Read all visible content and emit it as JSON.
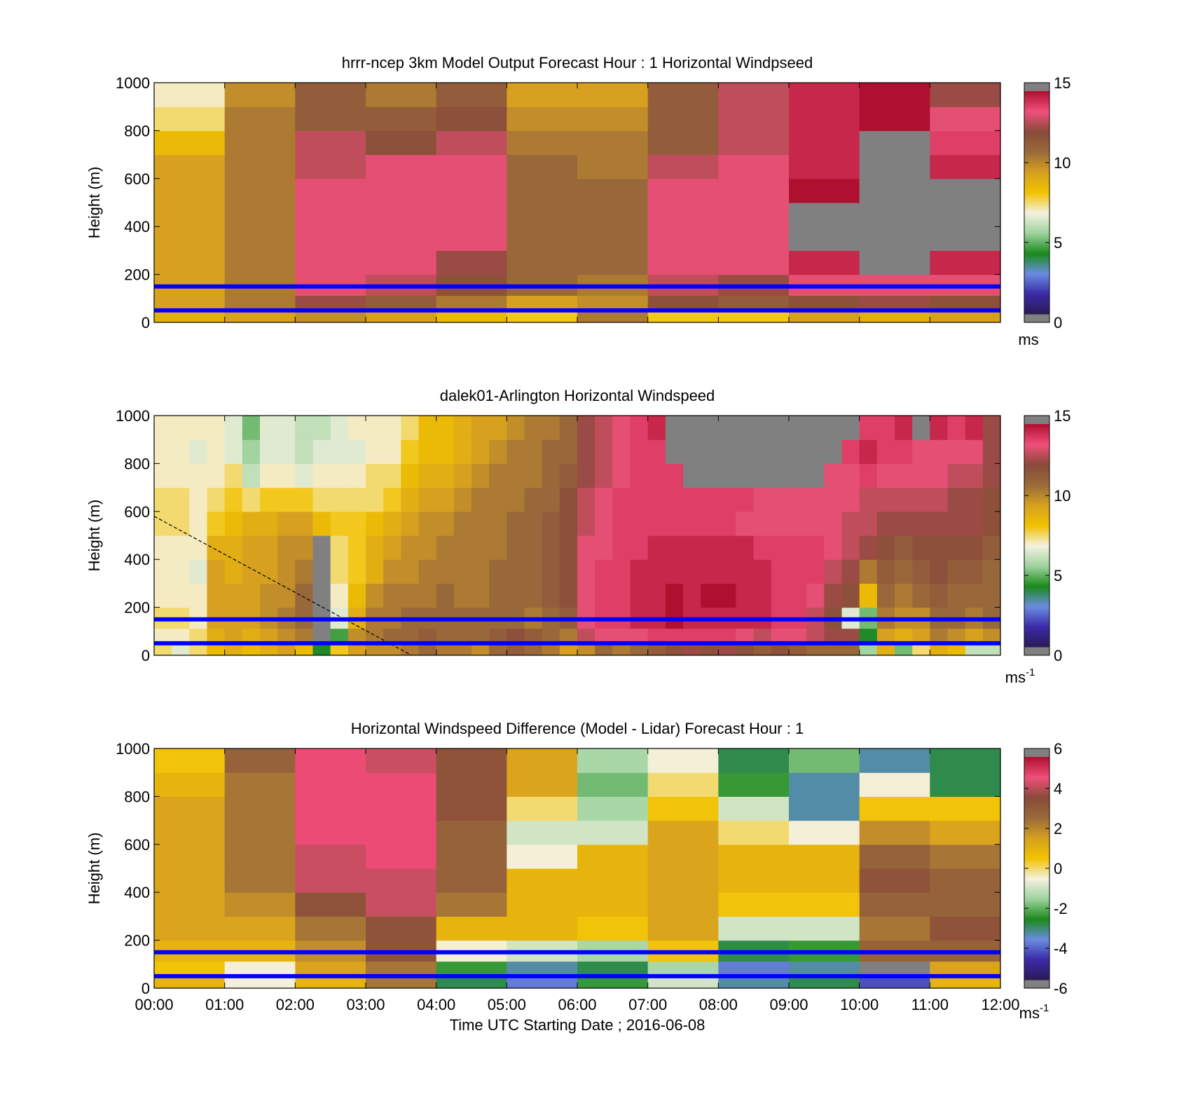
{
  "figure": {
    "xlabel": "Time UTC  Starting Date ; 2016-06-08"
  },
  "colors": {
    "scale_stops": [
      "#2a1a55",
      "#3b2aa8",
      "#6a8de0",
      "#1a8a1a",
      "#9fd39f",
      "#f4f1e0",
      "#f2c200",
      "#d6a020",
      "#9a6a3a",
      "#8a4a3a",
      "#f0507a",
      "#b01030"
    ],
    "missing": "#808080",
    "empty": "#ffffff",
    "overlay_line": "#0000ff"
  },
  "chart_data": [
    {
      "type": "heatmap",
      "title": "hrrr-ncep 3km Model Output   Forecast Hour : 1 Horizontal Windpseed",
      "ylabel": "Height (m)",
      "xlabel": "",
      "ylim": [
        0,
        1000
      ],
      "yticks": [
        "0",
        "200",
        "400",
        "600",
        "800",
        "1000"
      ],
      "xticks": [
        "00:00",
        "01:00",
        "02:00",
        "03:00",
        "04:00",
        "05:00",
        "06:00",
        "07:00",
        "08:00",
        "09:00",
        "10:00",
        "11:00",
        "12:00"
      ],
      "show_xtick_labels": false,
      "x_hours": [
        0,
        12
      ],
      "heights": [
        25,
        75,
        150,
        250,
        350,
        450,
        550,
        650,
        750,
        850,
        950
      ],
      "time_bins": 12,
      "values": [
        [
          9.0,
          9.5,
          10.0,
          9.5,
          8.5,
          8.0,
          10.5,
          8.0,
          8.0,
          9.5,
          9.0,
          9.5
        ],
        [
          9.5,
          10.5,
          12.5,
          11.5,
          10.5,
          9.5,
          10.0,
          12.0,
          11.5,
          12.0,
          12.5,
          12.0
        ],
        [
          9.5,
          10.5,
          13.5,
          13.0,
          12.0,
          11.0,
          10.5,
          13.0,
          12.5,
          13.5,
          13.5,
          13.5
        ],
        [
          9.5,
          10.5,
          13.5,
          13.5,
          12.5,
          11.0,
          11.0,
          13.5,
          13.5,
          14.5,
          null,
          14.5
        ],
        [
          9.5,
          10.5,
          13.5,
          13.5,
          13.5,
          11.0,
          11.0,
          13.5,
          13.5,
          null,
          null,
          null
        ],
        [
          9.5,
          10.5,
          13.5,
          13.5,
          13.5,
          11.0,
          11.0,
          13.5,
          13.5,
          null,
          null,
          null
        ],
        [
          9.5,
          10.5,
          13.5,
          13.5,
          13.5,
          11.0,
          11.0,
          13.5,
          13.5,
          15.0,
          null,
          null
        ],
        [
          9.5,
          10.5,
          13.0,
          13.5,
          13.5,
          11.0,
          10.5,
          13.0,
          13.5,
          14.5,
          null,
          14.5
        ],
        [
          8.5,
          10.5,
          13.0,
          12.0,
          13.0,
          10.5,
          10.5,
          11.5,
          13.0,
          14.5,
          null,
          14.0
        ],
        [
          7.5,
          10.5,
          11.5,
          11.5,
          12.0,
          10.0,
          10.0,
          11.5,
          13.0,
          14.5,
          15.0,
          13.5
        ],
        [
          7.0,
          10.0,
          11.5,
          10.5,
          11.5,
          9.5,
          9.5,
          11.5,
          13.0,
          14.5,
          15.0,
          12.5
        ]
      ],
      "overlay_lines_m": [
        50,
        150
      ],
      "colorbar": {
        "min": 0,
        "max": 15,
        "ticks": [
          "0",
          "5",
          "10",
          "15"
        ],
        "unit": "ms"
      }
    },
    {
      "type": "heatmap",
      "title": "dalek01-Arlington  Horizontal Windspeed",
      "ylabel": "Height (m)",
      "xlabel": "",
      "ylim": [
        0,
        1000
      ],
      "yticks": [
        "0",
        "200",
        "400",
        "600",
        "800",
        "1000"
      ],
      "xticks": [
        "00:00",
        "01:00",
        "02:00",
        "03:00",
        "04:00",
        "05:00",
        "06:00",
        "07:00",
        "08:00",
        "09:00",
        "10:00",
        "11:00",
        "12:00"
      ],
      "show_xtick_labels": false,
      "x_hours": [
        0,
        12
      ],
      "heights": [
        25,
        75,
        150,
        250,
        350,
        450,
        550,
        650,
        750,
        850,
        950
      ],
      "time_bins": 48,
      "values": [
        [
          7.5,
          6.5,
          7.5,
          8.5,
          9.0,
          8.5,
          9.0,
          9.5,
          8.5,
          4.0,
          8.0,
          9.5,
          10.0,
          10.0,
          10.5,
          11.0,
          10.5,
          10.5,
          10.0,
          11.0,
          11.5,
          11.0,
          10.5,
          9.5,
          10.0,
          11.0,
          10.5,
          11.0,
          11.5,
          12.0,
          12.5,
          12.0,
          12.5,
          12.0,
          11.5,
          12.0,
          11.5,
          11.0,
          11.0,
          11.0,
          5.5,
          9.0,
          5.0,
          7.5,
          9.0,
          8.5,
          6.0,
          6.0
        ],
        [
          7.0,
          7.0,
          7.5,
          9.0,
          9.5,
          9.0,
          9.5,
          10.0,
          10.5,
          null,
          4.5,
          10.0,
          10.5,
          11.0,
          11.0,
          11.5,
          11.0,
          11.0,
          11.0,
          11.5,
          12.0,
          11.5,
          11.0,
          10.5,
          13.0,
          13.5,
          13.5,
          13.5,
          14.0,
          14.0,
          14.0,
          14.0,
          14.0,
          13.5,
          13.0,
          13.5,
          13.5,
          13.0,
          12.5,
          12.5,
          4.0,
          9.5,
          9.0,
          9.5,
          10.5,
          10.0,
          9.5,
          10.0
        ],
        [
          7.5,
          7.5,
          7.0,
          9.5,
          9.5,
          9.5,
          10.0,
          10.5,
          11.0,
          null,
          6.5,
          9.0,
          10.5,
          10.5,
          11.0,
          11.0,
          11.0,
          11.0,
          11.0,
          11.0,
          11.0,
          10.5,
          11.0,
          11.5,
          13.5,
          14.0,
          14.0,
          14.5,
          14.5,
          15.0,
          14.5,
          14.5,
          14.5,
          14.5,
          14.5,
          14.0,
          14.0,
          13.0,
          12.0,
          6.5,
          5.0,
          10.5,
          10.0,
          10.0,
          11.0,
          11.0,
          10.5,
          11.0
        ],
        [
          7.0,
          7.0,
          7.0,
          9.5,
          9.5,
          9.5,
          10.0,
          10.0,
          11.0,
          null,
          7.0,
          8.5,
          10.0,
          10.5,
          10.5,
          10.5,
          11.0,
          10.5,
          10.5,
          11.0,
          11.0,
          11.0,
          11.5,
          12.0,
          13.5,
          14.0,
          14.0,
          14.5,
          14.5,
          15.0,
          14.5,
          15.0,
          15.0,
          14.5,
          14.5,
          14.0,
          14.0,
          13.5,
          12.5,
          12.0,
          8.5,
          11.0,
          10.5,
          11.0,
          11.5,
          11.0,
          11.0,
          11.0
        ],
        [
          7.0,
          7.0,
          6.5,
          9.5,
          9.0,
          9.5,
          9.5,
          10.0,
          10.5,
          null,
          7.5,
          8.0,
          9.0,
          10.0,
          10.0,
          10.5,
          10.5,
          10.5,
          10.5,
          11.0,
          11.0,
          11.0,
          11.5,
          12.0,
          13.5,
          14.0,
          14.0,
          14.5,
          14.5,
          14.5,
          14.5,
          14.5,
          14.5,
          14.5,
          14.5,
          14.0,
          14.0,
          14.0,
          13.0,
          12.5,
          10.5,
          11.5,
          11.0,
          11.5,
          12.0,
          11.5,
          11.5,
          11.0
        ],
        [
          7.0,
          7.0,
          7.0,
          9.0,
          9.0,
          9.5,
          9.5,
          10.0,
          10.0,
          null,
          7.5,
          8.0,
          9.0,
          9.5,
          10.0,
          10.0,
          10.5,
          10.5,
          10.5,
          10.5,
          11.0,
          11.0,
          11.5,
          12.0,
          13.5,
          13.5,
          14.0,
          14.0,
          14.5,
          14.5,
          14.5,
          14.5,
          14.5,
          14.5,
          14.0,
          14.0,
          14.0,
          14.0,
          13.5,
          13.0,
          12.5,
          12.0,
          11.5,
          12.0,
          12.0,
          12.0,
          12.0,
          11.5
        ],
        [
          7.5,
          7.5,
          7.0,
          8.0,
          8.5,
          9.0,
          9.0,
          9.5,
          9.5,
          8.5,
          8.0,
          8.0,
          8.5,
          9.0,
          9.5,
          10.0,
          10.0,
          10.5,
          10.5,
          10.5,
          11.0,
          11.0,
          11.5,
          12.0,
          13.0,
          13.5,
          14.0,
          14.0,
          14.0,
          14.0,
          14.0,
          14.0,
          14.0,
          13.5,
          13.5,
          13.5,
          13.5,
          13.5,
          13.5,
          13.0,
          13.0,
          12.5,
          12.5,
          12.5,
          12.5,
          12.5,
          12.5,
          12.0
        ],
        [
          7.5,
          7.5,
          7.0,
          7.5,
          8.0,
          7.5,
          8.0,
          8.0,
          8.0,
          7.5,
          7.5,
          7.5,
          7.5,
          8.0,
          9.0,
          9.5,
          9.5,
          10.0,
          10.5,
          10.5,
          10.5,
          11.0,
          11.0,
          12.0,
          13.0,
          13.5,
          14.0,
          14.0,
          14.0,
          14.0,
          14.0,
          14.0,
          14.0,
          14.0,
          13.5,
          13.5,
          13.5,
          13.5,
          13.5,
          13.5,
          13.0,
          13.0,
          13.0,
          13.0,
          13.0,
          12.5,
          12.5,
          12.0
        ],
        [
          7.0,
          7.0,
          7.0,
          7.0,
          7.5,
          6.0,
          7.0,
          7.0,
          6.5,
          7.0,
          7.0,
          7.0,
          7.5,
          7.5,
          8.5,
          9.0,
          9.0,
          9.5,
          10.0,
          10.5,
          10.5,
          10.5,
          11.0,
          11.5,
          12.5,
          13.0,
          13.5,
          14.0,
          14.0,
          14.0,
          null,
          null,
          null,
          null,
          null,
          null,
          null,
          null,
          13.5,
          13.5,
          14.0,
          13.5,
          13.5,
          13.5,
          13.5,
          13.0,
          13.0,
          12.5
        ],
        [
          7.0,
          7.0,
          6.5,
          7.0,
          6.5,
          5.5,
          6.5,
          6.5,
          6.0,
          6.5,
          6.5,
          6.5,
          7.0,
          7.0,
          8.0,
          8.5,
          8.5,
          9.0,
          9.5,
          10.0,
          10.5,
          10.5,
          11.0,
          11.0,
          12.5,
          13.0,
          13.5,
          14.0,
          14.0,
          null,
          null,
          null,
          null,
          null,
          null,
          null,
          null,
          null,
          null,
          14.0,
          14.5,
          14.0,
          14.0,
          13.5,
          13.5,
          13.5,
          13.5,
          12.5
        ],
        [
          7.0,
          7.0,
          7.0,
          7.0,
          6.5,
          5.0,
          6.5,
          6.5,
          6.0,
          6.0,
          6.5,
          7.0,
          7.0,
          7.0,
          7.5,
          8.5,
          8.5,
          9.0,
          9.5,
          9.5,
          10.0,
          10.5,
          10.5,
          11.0,
          12.5,
          13.0,
          13.5,
          14.0,
          14.5,
          null,
          null,
          null,
          null,
          null,
          null,
          null,
          null,
          null,
          null,
          null,
          14.0,
          14.0,
          14.5,
          null,
          14.5,
          14.0,
          14.5,
          12.5
        ]
      ],
      "slant_line": {
        "from": {
          "hour": 0.0,
          "m": 580
        },
        "to": {
          "hour": 3.65,
          "m": 0
        }
      },
      "overlay_lines_m": [
        50,
        150
      ],
      "colorbar": {
        "min": 0,
        "max": 15,
        "ticks": [
          "0",
          "5",
          "10",
          "15"
        ],
        "unit": "ms",
        "unit_exp": "-1"
      }
    },
    {
      "type": "heatmap",
      "title": "Horizontal Windspeed Difference (Model - Lidar) Forecast Hour : 1",
      "ylabel": "Height (m)",
      "xlabel": "Time UTC  Starting Date ; 2016-06-08",
      "ylim": [
        0,
        1000
      ],
      "yticks": [
        "0",
        "200",
        "400",
        "600",
        "800",
        "1000"
      ],
      "xticks": [
        "00:00",
        "01:00",
        "02:00",
        "03:00",
        "04:00",
        "05:00",
        "06:00",
        "07:00",
        "08:00",
        "09:00",
        "10:00",
        "11:00",
        "12:00"
      ],
      "show_xtick_labels": true,
      "x_hours": [
        0,
        12
      ],
      "heights": [
        25,
        75,
        150,
        250,
        350,
        450,
        550,
        650,
        750,
        850,
        950
      ],
      "time_bins": 12,
      "values": [
        [
          1.0,
          -0.5,
          1.0,
          2.5,
          -3.0,
          -4.0,
          -2.5,
          -1.0,
          -3.5,
          -3.0,
          -4.5,
          1.0
        ],
        [
          0.5,
          -0.5,
          1.5,
          2.5,
          -2.5,
          -3.5,
          -3.0,
          -1.5,
          -4.0,
          -3.5,
          null,
          1.5
        ],
        [
          1.0,
          1.0,
          2.0,
          3.5,
          -0.5,
          -1.0,
          -1.5,
          0.5,
          -3.0,
          -2.5,
          3.0,
          3.0
        ],
        [
          1.5,
          1.5,
          2.5,
          3.5,
          1.0,
          1.0,
          0.5,
          1.5,
          -1.0,
          -1.0,
          2.5,
          3.5
        ],
        [
          1.5,
          2.0,
          3.5,
          4.5,
          2.5,
          1.0,
          1.0,
          1.5,
          0.5,
          0.5,
          3.0,
          3.0
        ],
        [
          1.5,
          2.5,
          4.5,
          4.5,
          3.0,
          1.0,
          1.0,
          1.5,
          1.0,
          1.0,
          3.5,
          3.0
        ],
        [
          1.5,
          2.5,
          4.5,
          5.0,
          3.0,
          -0.5,
          1.0,
          1.5,
          1.0,
          1.0,
          3.0,
          2.5
        ],
        [
          1.5,
          2.5,
          5.0,
          5.0,
          3.0,
          -1.0,
          -1.0,
          1.5,
          0.0,
          -0.5,
          2.0,
          1.5
        ],
        [
          1.5,
          2.5,
          5.0,
          5.0,
          3.5,
          0.0,
          -1.5,
          0.5,
          -1.0,
          -3.5,
          0.5,
          0.5
        ],
        [
          1.0,
          2.5,
          5.0,
          5.0,
          3.5,
          1.5,
          -2.0,
          0.0,
          -2.5,
          -3.5,
          -0.5,
          -3.0
        ],
        [
          0.5,
          3.0,
          5.0,
          4.5,
          3.5,
          1.5,
          -1.5,
          -0.5,
          -3.0,
          -2.0,
          -3.5,
          -3.0
        ]
      ],
      "overlay_lines_m": [
        50,
        150
      ],
      "colorbar": {
        "min": -6,
        "max": 6,
        "ticks": [
          "-6",
          "-4",
          "-2",
          "0",
          "2",
          "4",
          "6"
        ],
        "unit": "ms",
        "unit_exp": "-1"
      }
    }
  ]
}
